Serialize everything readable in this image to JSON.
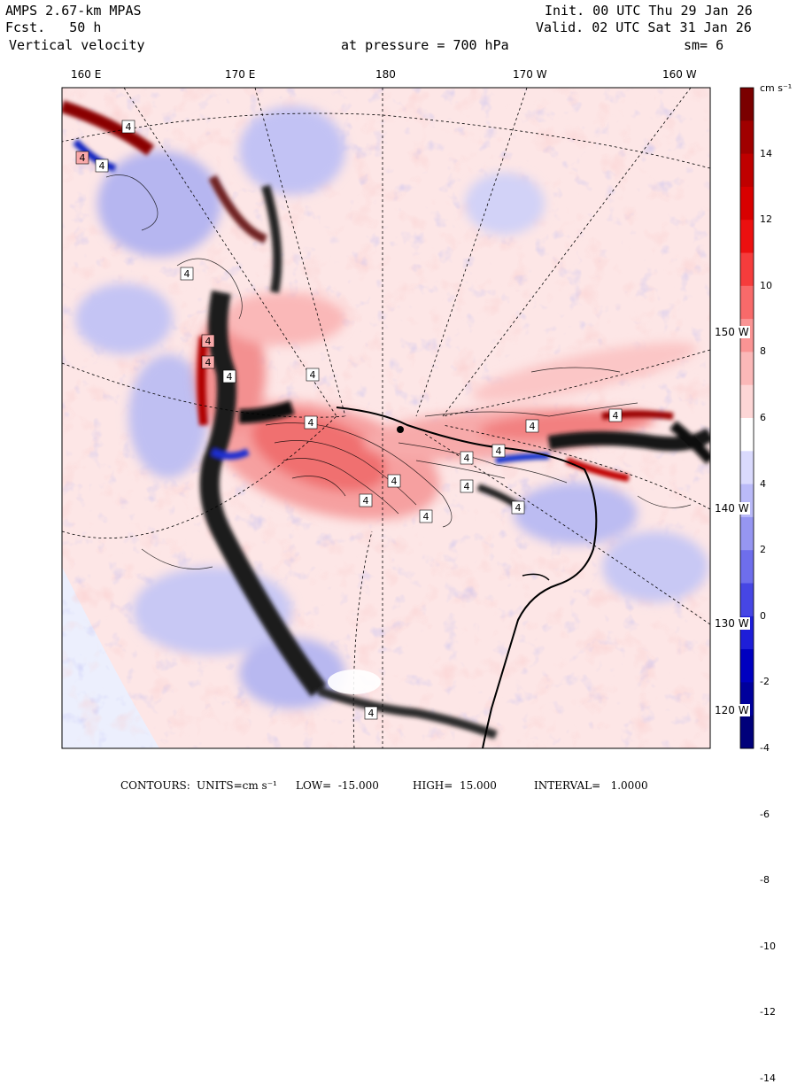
{
  "header": {
    "model": "AMPS 2.67-km MPAS",
    "fcst_label": "Fcst.",
    "fcst_value": "50 h",
    "field": "Vertical velocity",
    "pressure_label": "at pressure =",
    "pressure_value": "700 hPa",
    "init": "Init. 00 UTC Thu 29 Jan 26",
    "valid": "Valid. 02 UTC Sat 31 Jan 26",
    "smoothing": "sm= 6"
  },
  "axes": {
    "top_lon_labels": [
      "160 E",
      "170 E",
      "180",
      "170 W",
      "160 W"
    ],
    "right_lat_labels": [
      "150 W",
      "140 W",
      "130 W",
      "120 W"
    ]
  },
  "map_labels": [
    "4",
    "4",
    "4",
    "4",
    "4",
    "4",
    "4",
    "4",
    "4",
    "4",
    "4",
    "4",
    "4",
    "4",
    "4",
    "4",
    "4",
    "4",
    "4"
  ],
  "colorbar": {
    "units": "cm s⁻¹",
    "ticks": [
      "14",
      "12",
      "10",
      "8",
      "6",
      "4",
      "2",
      "0",
      "-2",
      "-4",
      "-6",
      "-8",
      "-10",
      "-12",
      "-14"
    ],
    "colors": [
      "#7a0000",
      "#a00000",
      "#bf0000",
      "#d80000",
      "#ec1010",
      "#f53c3c",
      "#f86a6a",
      "#fa9494",
      "#fbb8b8",
      "#fdd6d6",
      "#ffffff",
      "#dadafd",
      "#babaf8",
      "#9696f2",
      "#6e6eec",
      "#4646e4",
      "#1e1ed8",
      "#0000c0",
      "#00009c",
      "#00007a"
    ]
  },
  "footer": {
    "contours": "CONTOURS:",
    "units": "UNITS=cm s⁻¹",
    "low": "LOW=  -15.000",
    "high": "HIGH=  15.000",
    "interval": "INTERVAL=   1.0000"
  },
  "map_data": {
    "projection": "polar stereographic",
    "region": "Ross Ice Shelf / Antarctica",
    "contour_low": -15,
    "contour_high": 15,
    "contour_interval": 1
  }
}
